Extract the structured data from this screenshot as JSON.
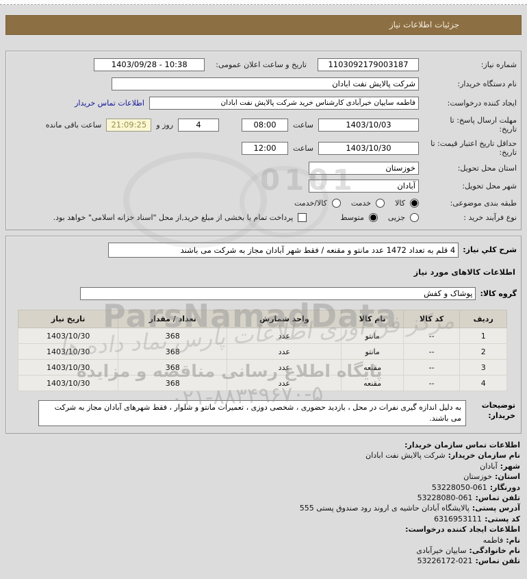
{
  "page": {
    "top_title": "جزئیات اطلاعات نیاز"
  },
  "colors": {
    "header_bg": "#8d6f44",
    "link": "#15159b",
    "countdown_bg": "#fbf7d2",
    "countdown_text": "#98914c"
  },
  "form": {
    "need_number_label": "شماره نیاز:",
    "need_number": "1103092179003187",
    "announce_label": "تاریخ و ساعت اعلان عمومی:",
    "announce_value": "1403/09/28 - 10:38",
    "buyer_org_label": "نام دستگاه خریدار:",
    "buyer_org": "شرکت پالایش نفت ابادان",
    "creator_label": "ایجاد کننده درخواست:",
    "creator": "فاطمه سایپان خیرآبادی کارشناس خرید شرکت پالایش نفت ابادان",
    "contact_link": "اطلاعات تماس خریدار",
    "deadline_label": "مهلت ارسال پاسخ: تا تاریخ:",
    "deadline_date": "1403/10/03",
    "hour_label": "ساعت",
    "deadline_time": "08:00",
    "days_value": "4",
    "days_label": "روز و",
    "countdown": "21:09:25",
    "remaining_label": "ساعت باقی مانده",
    "validity_label": "حداقل تاریخ اعتبار قیمت: تا تاریخ:",
    "validity_date": "1403/10/30",
    "validity_time": "12:00",
    "province_label": "استان محل تحویل:",
    "province": "خوزستان",
    "city_label": "شهر محل تحویل:",
    "city": "آبادان",
    "category_label": "طبقه بندی موضوعی:",
    "category_options": [
      {
        "label": "کالا",
        "selected": true
      },
      {
        "label": "خدمت",
        "selected": false
      },
      {
        "label": "کالا/خدمت",
        "selected": false
      }
    ],
    "process_label": "نوع فرآیند خرید :",
    "process_options": [
      {
        "label": "جزیی",
        "selected": false
      },
      {
        "label": "متوسط",
        "selected": true
      }
    ],
    "treasury_checked": false,
    "treasury_note": "پرداخت تمام یا بخشی از مبلغ خرید,از محل \"اسناد خزانه اسلامی\" خواهد بود."
  },
  "need_section": {
    "desc_label": "شرح کلي نیاز:",
    "desc_value": "4 قلم به تعداد 1472 عدد مانتو و مقنعه / فقط شهر آبادان مجاز به شرکت می باشند",
    "goods_heading": "اطلاعات کالاهای مورد نیاز",
    "group_label": "گروه کالا:",
    "group_value": "پوشاک و کفش",
    "table": {
      "headers": [
        "ردیف",
        "کد کالا",
        "نام کالا",
        "واحد شمارش",
        "تعداد / مقدار",
        "تاریخ نیاز"
      ],
      "rows": [
        [
          "1",
          "--",
          "مانتو",
          "عدد",
          "368",
          "1403/10/30"
        ],
        [
          "2",
          "--",
          "مانتو",
          "عدد",
          "368",
          "1403/10/30"
        ],
        [
          "3",
          "--",
          "مقنعه",
          "عدد",
          "368",
          "1403/10/30"
        ],
        [
          "4",
          "--",
          "مقنعه",
          "عدد",
          "368",
          "1403/10/30"
        ]
      ]
    },
    "notes_label_line1": "توضیحات",
    "notes_label_line2": "خریدار:",
    "buyer_notes": "به دلیل اندازه گیری نفرات در محل ، بازدید حضوری ، شخصی دوزی ، تعمیرات مانتو و شلوار ، فقط شهرهای آبادان مجاز به شرکت می باشند."
  },
  "contact": {
    "lines": [
      {
        "label": "اطلاعات تماس سازمان خریدار:",
        "value": "",
        "heading": true
      },
      {
        "label": "نام سازمان خریدار:",
        "value": "شرکت پالایش نفت ابادان"
      },
      {
        "label": "شهر:",
        "value": "آبادان"
      },
      {
        "label": "استان:",
        "value": "خوزستان"
      },
      {
        "label": "دورنگار:",
        "value": "53228050-061",
        "ltr": true
      },
      {
        "label": "تلفن تماس:",
        "value": "53228080-061",
        "ltr": true
      },
      {
        "label": "آدرس پستی:",
        "value": "پالایشگاه آبادان حاشیه ی اروند رود صندوق پستی 555"
      },
      {
        "label": "کد پستی:",
        "value": "6316953111"
      },
      {
        "label": "اطلاعات ایجاد کننده درخواست:",
        "value": "",
        "heading": true
      },
      {
        "label": "نام:",
        "value": "فاطمه"
      },
      {
        "label": "نام خانوادگی:",
        "value": "سایپان خیرآبادی"
      },
      {
        "label": "تلفن تماس:",
        "value": "53226172-021",
        "ltr": true
      }
    ]
  },
  "watermarks": {
    "brand": "ParsNamadData",
    "calligraphy": "مرکز فن آوری اطلاعات پارس نماد داده ها",
    "portal": "پایگاه اطلاع رسانی مناقصه و مزایده",
    "phone": "۰۲۱-۸۸۳۴۹۶۷۰-۵",
    "digits": "0101"
  }
}
